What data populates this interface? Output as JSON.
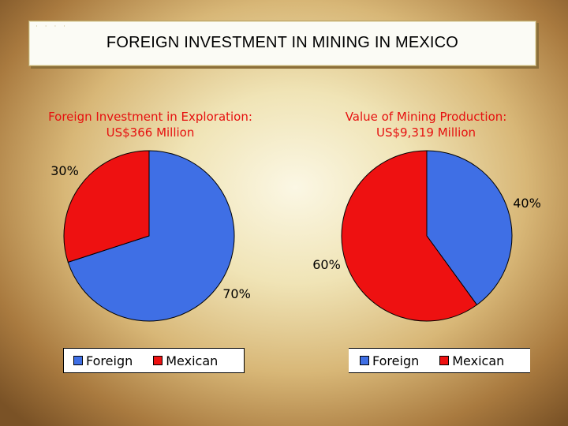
{
  "title": "FOREIGN INVESTMENT IN MINING IN MEXICO",
  "colors": {
    "foreign": "#3f6fe5",
    "mexican": "#ee1111",
    "title_text": "#e6100f"
  },
  "chart_data": [
    {
      "type": "pie",
      "title_lines": [
        "Foreign Investment in Exploration:",
        "US$366 Million"
      ],
      "categories": [
        "Foreign",
        "Mexican"
      ],
      "values": [
        70,
        30
      ],
      "labels": [
        "70%",
        "30%"
      ],
      "legend": [
        "Foreign",
        "Mexican"
      ],
      "legend_position": "bottom"
    },
    {
      "type": "pie",
      "title_lines": [
        "Value of Mining Production:",
        "US$9,319 Million"
      ],
      "categories": [
        "Foreign",
        "Mexican"
      ],
      "values": [
        40,
        60
      ],
      "labels": [
        "40%",
        "60%"
      ],
      "legend": [
        "Foreign",
        "Mexican"
      ],
      "legend_position": "bottom"
    }
  ]
}
